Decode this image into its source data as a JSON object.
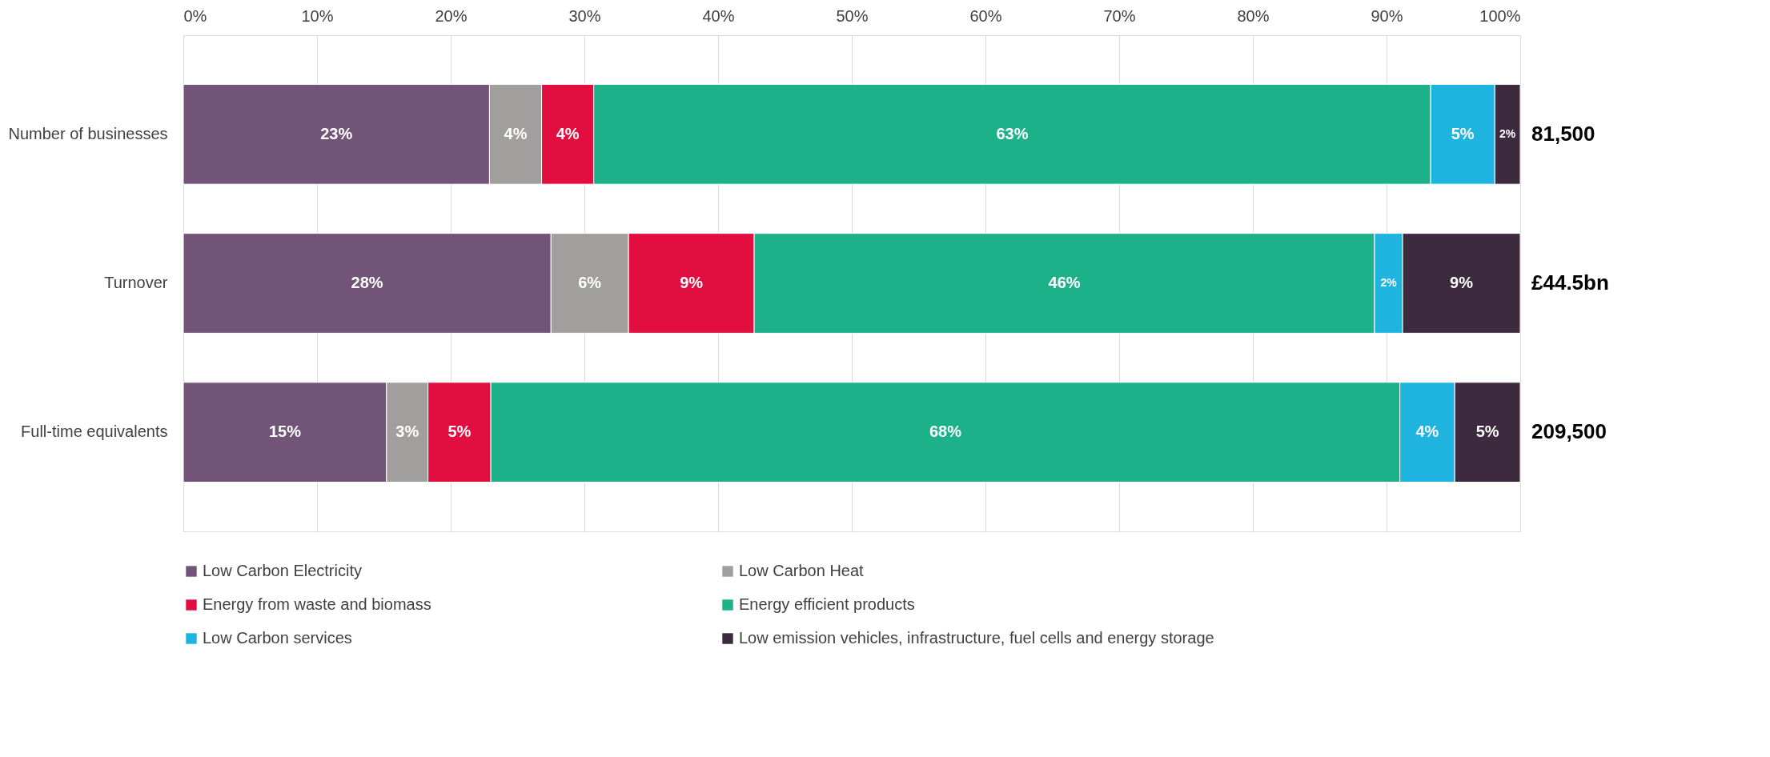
{
  "chart_data": {
    "type": "bar",
    "orientation": "horizontal",
    "stacked": true,
    "categories": [
      "Number of businesses",
      "Turnover",
      "Full-time equivalents"
    ],
    "series": [
      {
        "name": "Low Carbon Electricity",
        "color": "#725479",
        "values": [
          22.9,
          27.5,
          15.2
        ],
        "value_labels": [
          "23%",
          "28%",
          "15%"
        ]
      },
      {
        "name": "Low Carbon Heat",
        "color": "#a09f9d",
        "values": [
          3.9,
          5.8,
          3.1
        ],
        "value_labels": [
          "4%",
          "6%",
          "3%"
        ]
      },
      {
        "name": "Energy from waste and biomass",
        "color": "#e20e3f",
        "values": [
          3.9,
          9.4,
          4.7
        ],
        "value_labels": [
          "4%",
          "9%",
          "5%"
        ]
      },
      {
        "name": "Energy efficient products",
        "color": "#1db18a",
        "values": [
          62.6,
          46.4,
          68.0
        ],
        "value_labels": [
          "63%",
          "46%",
          "68%"
        ]
      },
      {
        "name": "Low Carbon services",
        "color": "#1fb3e0",
        "values": [
          4.8,
          2.1,
          4.1
        ],
        "value_labels": [
          "5%",
          "2%",
          "4%"
        ]
      },
      {
        "name": "Low emission vehicles, infrastructure, fuel cells and energy storage",
        "color": "#3d2a3e",
        "values": [
          1.9,
          8.8,
          4.9
        ],
        "value_labels": [
          "2%",
          "9%",
          "5%"
        ]
      }
    ],
    "annotations": [
      "81,500",
      "£44.5bn",
      "209,500"
    ],
    "xlim": [
      0,
      100
    ],
    "xticks": [
      {
        "value": 0,
        "label": "0%"
      },
      {
        "value": 10,
        "label": "10%"
      },
      {
        "value": 20,
        "label": "20%"
      },
      {
        "value": 30,
        "label": "30%"
      },
      {
        "value": 40,
        "label": "40%"
      },
      {
        "value": 50,
        "label": "50%"
      },
      {
        "value": 60,
        "label": "60%"
      },
      {
        "value": 70,
        "label": "70%"
      },
      {
        "value": 80,
        "label": "80%"
      },
      {
        "value": 90,
        "label": "90%"
      },
      {
        "value": 100,
        "label": "100%"
      }
    ],
    "grid": "x",
    "legend": "bottom"
  }
}
